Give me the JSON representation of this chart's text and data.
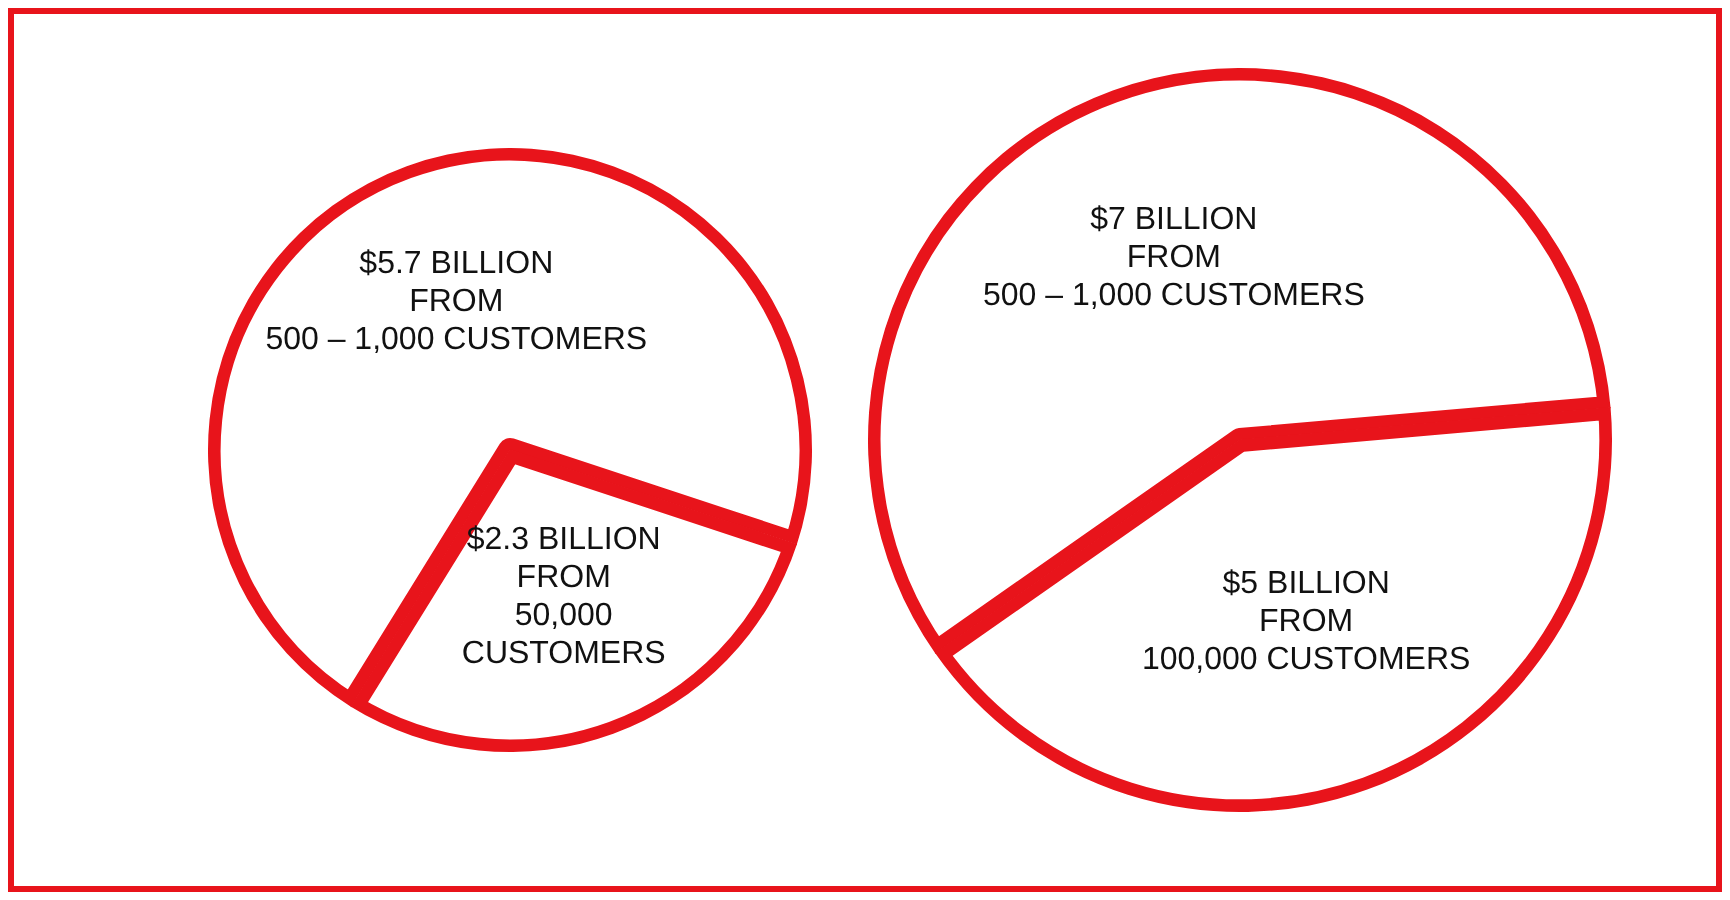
{
  "chart_data": [
    {
      "type": "pie",
      "categories": [
        "FROM\n500 – 1,000 CUSTOMERS",
        "FROM\n50,000\nCUSTOMERS"
      ],
      "values": [
        5.7,
        2.3
      ],
      "value_labels": [
        "$5.7 BILLION",
        "$2.3 BILLION"
      ],
      "colors": [
        "#ffffff",
        "#ffffff"
      ],
      "legend": false
    },
    {
      "type": "pie",
      "categories": [
        "FROM\n500 – 1,000 CUSTOMERS",
        "FROM\n100,000 CUSTOMERS"
      ],
      "values": [
        7,
        5
      ],
      "value_labels": [
        "$7 BILLION",
        "$5 BILLION"
      ],
      "colors": [
        "#ffffff",
        "#ffffff"
      ],
      "legend": false
    }
  ]
}
